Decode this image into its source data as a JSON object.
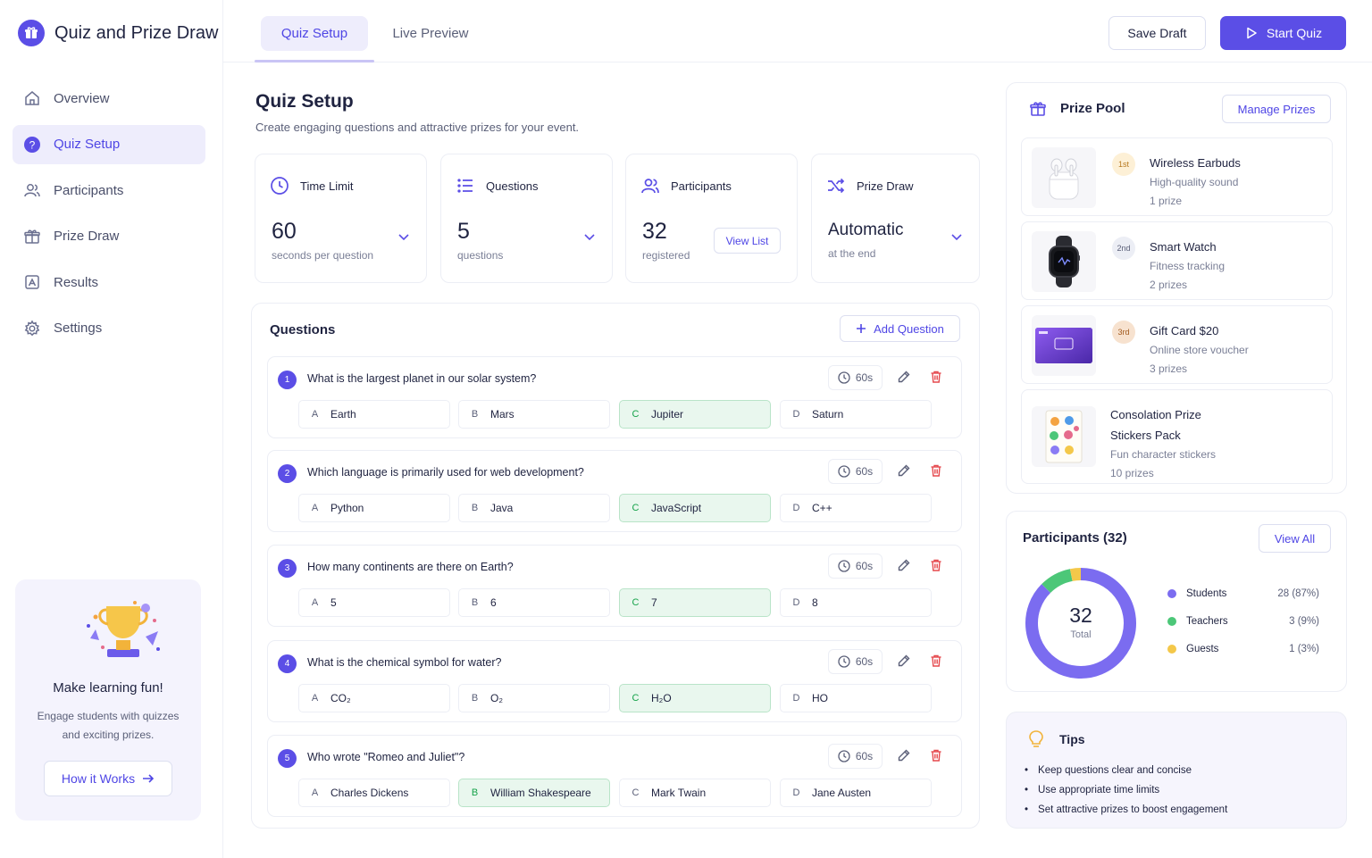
{
  "app": {
    "title": "Quiz and Prize Draw"
  },
  "sidebar": {
    "items": [
      {
        "label": "Overview",
        "icon": "home-icon"
      },
      {
        "label": "Quiz Setup",
        "icon": "help-circle-icon"
      },
      {
        "label": "Participants",
        "icon": "users-icon"
      },
      {
        "label": "Prize Draw",
        "icon": "gift-icon"
      },
      {
        "label": "Results",
        "icon": "chart-icon"
      },
      {
        "label": "Settings",
        "icon": "gear-icon"
      }
    ],
    "active_index": 1,
    "promo": {
      "title": "Make learning fun!",
      "text": "Engage students with quizzes and exciting prizes.",
      "button": "How it Works"
    }
  },
  "topbar": {
    "tabs": [
      "Quiz Setup",
      "Live Preview"
    ],
    "active_tab": 0,
    "save_label": "Save Draft",
    "start_label": "Start Quiz"
  },
  "main": {
    "title": "Quiz Setup",
    "subtitle": "Create engaging questions and attractive prizes for your event.",
    "stats": {
      "time_limit": {
        "label": "Time Limit",
        "value": "60",
        "sub": "seconds per question"
      },
      "questions": {
        "label": "Questions",
        "value": "5",
        "sub": "questions"
      },
      "participants": {
        "label": "Participants",
        "value": "32",
        "sub": "registered",
        "button": "View List"
      },
      "prize_draw": {
        "label": "Prize Draw",
        "value": "Automatic",
        "sub": "at the end"
      }
    },
    "questions_panel": {
      "title": "Questions",
      "add_label": "Add Question",
      "questions": [
        {
          "num": "1",
          "text": "What is the largest planet in our solar system?",
          "time": "60s",
          "options": [
            {
              "letter": "A",
              "text": "Earth"
            },
            {
              "letter": "B",
              "text": "Mars"
            },
            {
              "letter": "C",
              "text": "Jupiter"
            },
            {
              "letter": "D",
              "text": "Saturn"
            }
          ],
          "correct": 2
        },
        {
          "num": "2",
          "text": "Which language is primarily used for web development?",
          "time": "60s",
          "options": [
            {
              "letter": "A",
              "text": "Python"
            },
            {
              "letter": "B",
              "text": "Java"
            },
            {
              "letter": "C",
              "text": "JavaScript"
            },
            {
              "letter": "D",
              "text": "C++"
            }
          ],
          "correct": 2
        },
        {
          "num": "3",
          "text": "How many continents are there on Earth?",
          "time": "60s",
          "options": [
            {
              "letter": "A",
              "text": "5"
            },
            {
              "letter": "B",
              "text": "6"
            },
            {
              "letter": "C",
              "text": "7"
            },
            {
              "letter": "D",
              "text": "8"
            }
          ],
          "correct": 2
        },
        {
          "num": "4",
          "text": "What is the chemical symbol for water?",
          "time": "60s",
          "options": [
            {
              "letter": "A",
              "text": "CO₂"
            },
            {
              "letter": "B",
              "text": "O₂"
            },
            {
              "letter": "C",
              "text": "H₂O"
            },
            {
              "letter": "D",
              "text": "HO"
            }
          ],
          "correct": 2
        },
        {
          "num": "5",
          "text": "Who wrote \"Romeo and Juliet\"?",
          "time": "60s",
          "options": [
            {
              "letter": "A",
              "text": "Charles Dickens"
            },
            {
              "letter": "B",
              "text": "William Shakespeare"
            },
            {
              "letter": "C",
              "text": "Mark Twain"
            },
            {
              "letter": "D",
              "text": "Jane Austen"
            }
          ],
          "correct": 1
        }
      ]
    }
  },
  "prize_pool": {
    "title": "Prize Pool",
    "button": "Manage Prizes",
    "prizes": [
      {
        "rank": "1st",
        "name": "Wireless Earbuds",
        "desc": "High-quality sound",
        "count": "1 prize",
        "thumb": "earbuds-image"
      },
      {
        "rank": "2nd",
        "name": "Smart Watch",
        "desc": "Fitness tracking",
        "count": "2 prizes",
        "thumb": "smartwatch-image"
      },
      {
        "rank": "3rd",
        "name": "Gift Card $20",
        "desc": "Online store voucher",
        "count": "3 prizes",
        "thumb": "gift-card-image"
      },
      {
        "rank": "",
        "name": "Consolation Prize",
        "name2": "Stickers Pack",
        "desc": "Fun character stickers",
        "count": "10 prizes",
        "thumb": "stickers-image"
      }
    ]
  },
  "participants": {
    "title": "Participants (32)",
    "button": "View All",
    "total": "32",
    "total_label": "Total",
    "groups": [
      {
        "label": "Students",
        "value": "28 (87%)",
        "count": 28,
        "color": "#7b6cf0"
      },
      {
        "label": "Teachers",
        "value": "3 (9%)",
        "count": 3,
        "color": "#4cc778"
      },
      {
        "label": "Guests",
        "value": "1 (3%)",
        "count": 1,
        "color": "#f4c84a"
      }
    ]
  },
  "tips": {
    "title": "Tips",
    "items": [
      "Keep questions clear and concise",
      "Use appropriate time limits",
      "Set attractive prizes to boost engagement"
    ]
  },
  "colors": {
    "accent": "#5b4ee6",
    "correct_bg": "#e9f7ee",
    "delete": "#e5484d"
  }
}
